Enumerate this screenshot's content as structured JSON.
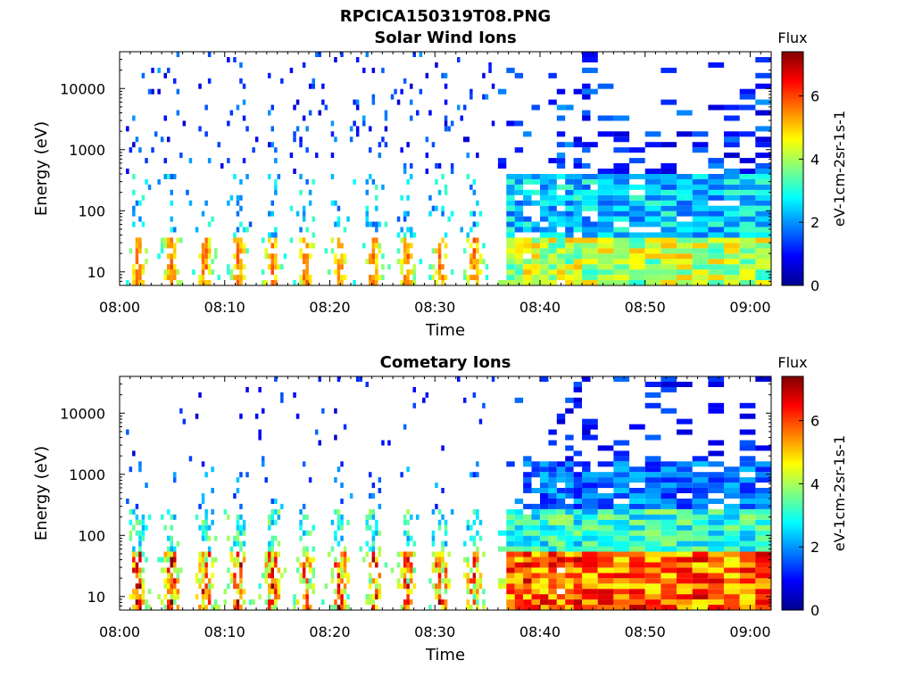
{
  "figure_title": "RPCICA150319T08.PNG",
  "chart_data": [
    {
      "type": "heatmap",
      "title": "Solar Wind Ions",
      "xlabel": "Time",
      "ylabel": "Energy (eV)",
      "x_ticks": [
        "08:00",
        "08:10",
        "08:20",
        "08:30",
        "08:40",
        "08:50",
        "09:00"
      ],
      "x_range": [
        "08:00",
        "09:02"
      ],
      "y_scale": "log",
      "y_ticks": [
        "10",
        "100",
        "1000",
        "10000"
      ],
      "y_range": [
        6,
        40000
      ],
      "colorbar": {
        "label": "Flux",
        "unit_label": "eV-1cm-2sr-1s-1",
        "ticks": [
          "0",
          "2",
          "4",
          "6"
        ],
        "range": [
          0,
          7.4
        ]
      },
      "colormap": [
        "#00008f",
        "#0000ff",
        "#0080ff",
        "#00ffff",
        "#80ff80",
        "#ffff00",
        "#ff8000",
        "#ff0000",
        "#800000"
      ],
      "grid": false,
      "profile": "solar"
    },
    {
      "type": "heatmap",
      "title": "Cometary Ions",
      "xlabel": "Time",
      "ylabel": "Energy (eV)",
      "x_ticks": [
        "08:00",
        "08:10",
        "08:20",
        "08:30",
        "08:40",
        "08:50",
        "09:00"
      ],
      "x_range": [
        "08:00",
        "09:02"
      ],
      "y_scale": "log",
      "y_ticks": [
        "10",
        "100",
        "1000",
        "10000"
      ],
      "y_range": [
        6,
        40000
      ],
      "colorbar": {
        "label": "Flux",
        "unit_label": "eV-1cm-2sr-1s-1",
        "ticks": [
          "0",
          "2",
          "4",
          "6"
        ],
        "range": [
          0,
          7.4
        ]
      },
      "colormap": [
        "#00008f",
        "#0000ff",
        "#0080ff",
        "#00ffff",
        "#80ff80",
        "#ffff00",
        "#ff8000",
        "#ff0000",
        "#800000"
      ],
      "grid": false,
      "profile": "cometary"
    }
  ]
}
